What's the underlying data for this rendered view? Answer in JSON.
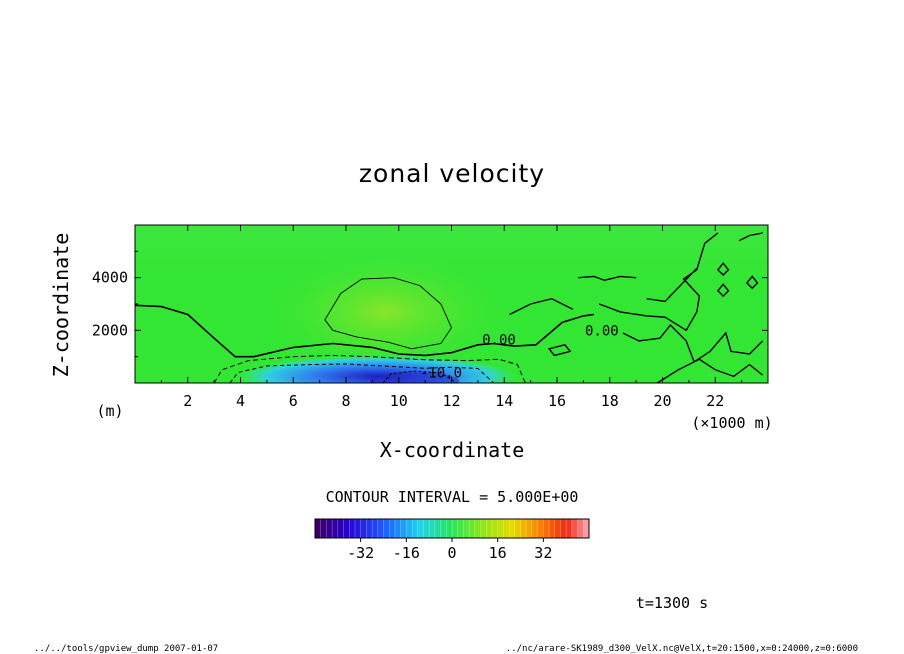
{
  "chart_data": {
    "type": "heatmap",
    "title": "zonal velocity",
    "xlabel": "X-coordinate",
    "ylabel": "Z-coordinate",
    "x_unit": "(×1000 m)",
    "y_unit": "(m)",
    "xlim": [
      0,
      24
    ],
    "ylim": [
      0,
      6000
    ],
    "x_ticks": [
      2,
      4,
      6,
      8,
      10,
      12,
      14,
      16,
      18,
      20,
      22
    ],
    "y_ticks": [
      2000,
      4000
    ],
    "contour_labels": [
      {
        "text": "0.00",
        "x": 13.8,
        "z": 1650
      },
      {
        "text": "0.00",
        "x": 17.7,
        "z": 2000
      },
      {
        "text": "-10.0",
        "x": 11.6,
        "z": 400
      }
    ],
    "contour_interval": "CONTOUR INTERVAL = 5.000E+00",
    "colorbar": {
      "min": -48,
      "max": 48,
      "tick_values": [
        -32,
        -16,
        0,
        16,
        32
      ],
      "tick_labels": [
        "-32",
        "-16",
        "0",
        "16",
        "32"
      ]
    },
    "time_label": "t=1300 s",
    "footer_left": "../../tools/gpview_dump  2007-01-07",
    "footer_right": "../nc/arare-SK1989_d300_VelX.nc@VelX,t=20:1500,x=0:24000,z=0:6000",
    "colors": {
      "background_field": "#33e633",
      "jet_core": "#2a2ad8"
    }
  }
}
